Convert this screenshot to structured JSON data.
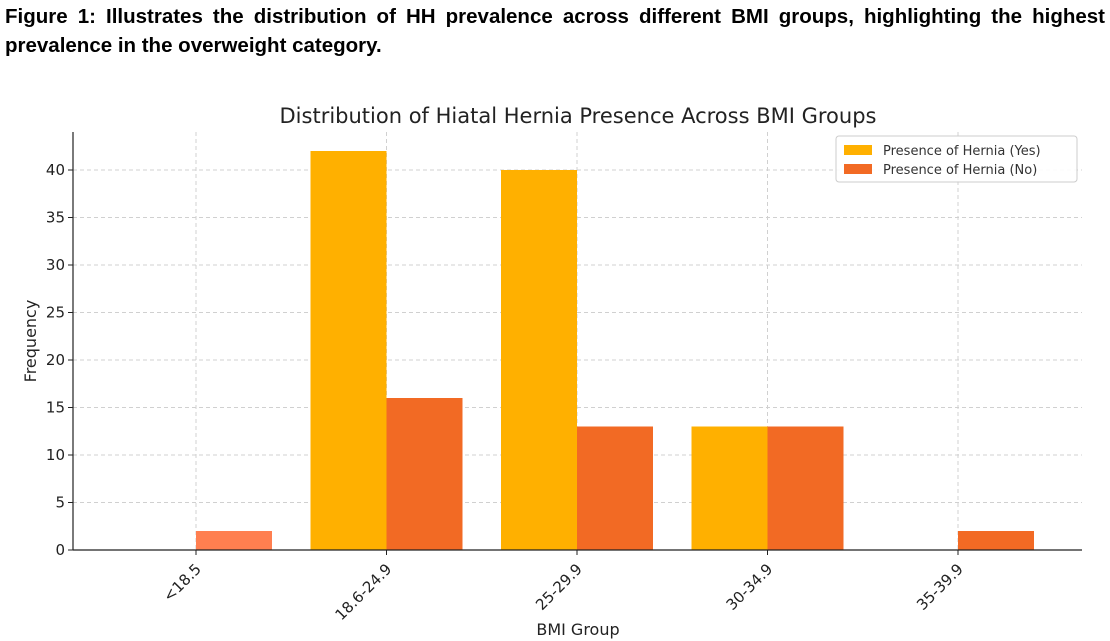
{
  "caption": {
    "text": "Figure 1: Illustrates the distribution of HH prevalence across different BMI groups, highlighting the highest prevalence in the overweight category."
  },
  "chart_data": {
    "type": "bar",
    "title": "Distribution of Hiatal Hernia Presence Across BMI Groups",
    "xlabel": "BMI Group",
    "ylabel": "Frequency",
    "categories": [
      "<18.5",
      "18.6-24.9",
      "25-29.9",
      "30-34.9",
      "35-39.9"
    ],
    "series": [
      {
        "name": "Presence of Hernia (Yes)",
        "color": "#ffb000",
        "values": [
          0,
          42,
          40,
          13,
          0
        ]
      },
      {
        "name": "Presence of Hernia (No)",
        "color": "#f26a24",
        "values": [
          2,
          16,
          13,
          13,
          2
        ]
      }
    ],
    "special_colors": {
      "<18.5 No": "#ff7f50"
    },
    "ylim": [
      0,
      44
    ],
    "yticks": [
      0,
      5,
      10,
      15,
      20,
      25,
      30,
      35,
      40
    ],
    "grid": true,
    "legend_position": "top-right"
  }
}
